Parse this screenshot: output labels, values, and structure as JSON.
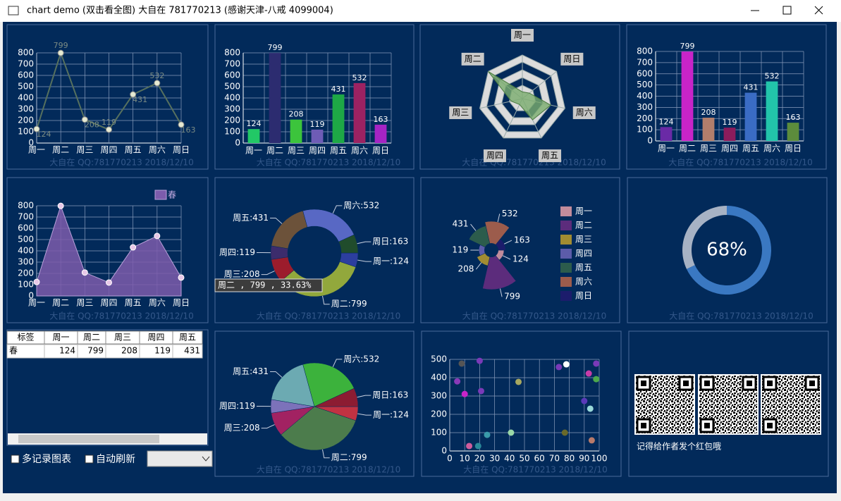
{
  "window": {
    "title": "chart demo (双击看全图) 大自在 781770213 (感谢天津-八戒 4099004)"
  },
  "watermark": "大自在  QQ:781770213 2018/12/10",
  "chart_data": [
    {
      "type": "line",
      "categories": [
        "周一",
        "周二",
        "周三",
        "周四",
        "周五",
        "周六",
        "周日"
      ],
      "values": [
        124,
        799,
        208,
        119,
        431,
        532,
        163
      ],
      "color": "#56705e",
      "marker_color": "#e6ead2",
      "ylim": [
        0,
        800
      ],
      "yticks": [
        0,
        100,
        200,
        300,
        400,
        500,
        600,
        700,
        800
      ],
      "grid": true,
      "data_labels": true
    },
    {
      "type": "bar",
      "categories": [
        "周一",
        "周二",
        "周三",
        "周四",
        "周五",
        "周六",
        "周日"
      ],
      "values": [
        124,
        799,
        208,
        119,
        431,
        532,
        163
      ],
      "colors": [
        "#22c866",
        "#2c2c70",
        "#3cc43c",
        "#6e5cb6",
        "#1ea846",
        "#9c2262",
        "#a624c4"
      ],
      "ylim": [
        0,
        800
      ],
      "yticks": [
        0,
        100,
        200,
        300,
        400,
        500,
        600,
        700,
        800
      ],
      "grid": true,
      "data_labels": true
    },
    {
      "type": "radar",
      "categories": [
        "周一",
        "周二",
        "周三",
        "周四",
        "周五",
        "周六",
        "周日"
      ],
      "values": [
        124,
        799,
        208,
        119,
        431,
        532,
        163
      ],
      "rlim": [
        0,
        800
      ],
      "color": "#7aac6e"
    },
    {
      "type": "bar",
      "categories": [
        "周一",
        "周二",
        "周三",
        "周四",
        "周五",
        "周六",
        "周日"
      ],
      "values": [
        124,
        799,
        208,
        119,
        431,
        532,
        163
      ],
      "colors": [
        "#6a2aa6",
        "#c824c8",
        "#b27e6c",
        "#8c1c5c",
        "#3a6cc4",
        "#22c4aa",
        "#5c8c3c"
      ],
      "ylim": [
        0,
        800
      ],
      "yticks": [
        0,
        100,
        200,
        300,
        400,
        500,
        600,
        700,
        800
      ],
      "grid": true,
      "data_labels": true
    },
    {
      "type": "area",
      "categories": [
        "周一",
        "周二",
        "周三",
        "周四",
        "周五",
        "周六",
        "周日"
      ],
      "series": [
        {
          "name": "春",
          "color": "#7c5cac",
          "values": [
            124,
            799,
            208,
            119,
            431,
            532,
            163
          ]
        }
      ],
      "ylim": [
        0,
        800
      ],
      "yticks": [
        0,
        100,
        200,
        300,
        400,
        500,
        600,
        700,
        800
      ],
      "grid": true
    },
    {
      "type": "donut",
      "categories": [
        "周一",
        "周二",
        "周三",
        "周四",
        "周五",
        "周六",
        "周日"
      ],
      "values": [
        124,
        799,
        208,
        119,
        431,
        532,
        163
      ],
      "value_labels": [
        "周一:124",
        "周二:799",
        "周三:208",
        "周四:119",
        "周五:431",
        "周六:532",
        "周日:163"
      ],
      "colors": [
        "#2c3e9e",
        "#92a83c",
        "#9c1c2c",
        "#3c2c6c",
        "#6c523a",
        "#5868c4",
        "#204c2c"
      ],
      "tooltip": "周二 , 799 , 33.63%"
    },
    {
      "type": "rose",
      "categories": [
        "周一",
        "周二",
        "周三",
        "周四",
        "周五",
        "周六",
        "周日"
      ],
      "values": [
        124,
        799,
        208,
        119,
        431,
        532,
        163
      ],
      "colors": [
        "#c28c9c",
        "#5c2c7c",
        "#a28c32",
        "#5c5caa",
        "#2c5c4c",
        "#9c5c4c",
        "#1c1c6c"
      ],
      "rlim": [
        0,
        800
      ]
    },
    {
      "type": "gauge",
      "values": [
        68
      ],
      "value_labels": [
        "68%"
      ],
      "lim": [
        0,
        100
      ],
      "colors": [
        "#3a78c2",
        "#a7b2c4"
      ]
    },
    {
      "type": "pie",
      "categories": [
        "周一",
        "周二",
        "周三",
        "周四",
        "周五",
        "周六",
        "周日"
      ],
      "values": [
        124,
        799,
        208,
        119,
        431,
        532,
        163
      ],
      "value_labels": [
        "周一:124",
        "周二:799",
        "周三:208",
        "周四:119",
        "周五:431",
        "周六:532",
        "周日:163"
      ],
      "colors": [
        "#c23242",
        "#4c7c4c",
        "#a22262",
        "#7c72ba",
        "#6caab2",
        "#3cb23c",
        "#8c1c32"
      ]
    },
    {
      "type": "scatter",
      "x": [
        8,
        20,
        5,
        21,
        10,
        13,
        19,
        25,
        41,
        46,
        73,
        78,
        98,
        93,
        98,
        90,
        94,
        77,
        95
      ],
      "values": [
        477,
        492,
        380,
        327,
        311,
        27,
        27,
        88,
        100,
        377,
        458,
        473,
        477,
        423,
        392,
        273,
        231,
        100,
        58
      ],
      "colors": [
        "#555555",
        "#7a3ab8",
        "#8a3ab8",
        "#7a3ab8",
        "#c824c8",
        "#d05c9c",
        "#2a8a9a",
        "#3a9aaa",
        "#9ad8a8",
        "#a8a860",
        "#7a3ab8",
        "#ffffff",
        "#7a3ab8",
        "#c83ca8",
        "#4ca84c",
        "#5a3ab8",
        "#9ad8d8",
        "#6a6a2a",
        "#b87a6a"
      ],
      "xlim": [
        0,
        100
      ],
      "xticks": [
        0,
        10,
        20,
        30,
        40,
        50,
        60,
        70,
        80,
        90,
        100
      ],
      "ylim": [
        0,
        500
      ],
      "yticks": [
        0,
        100,
        200,
        300,
        400,
        500
      ],
      "grid": true
    }
  ],
  "table": {
    "header": [
      "标签",
      "周一",
      "周二",
      "周三",
      "周四",
      "周五"
    ],
    "rows": [
      [
        "春",
        "124",
        "799",
        "208",
        "119",
        "431"
      ]
    ]
  },
  "controls": {
    "checkbox_multi": "多记录图表",
    "checkbox_refresh": "自动刷新"
  },
  "qr_caption": "记得给作者发个红包哦"
}
